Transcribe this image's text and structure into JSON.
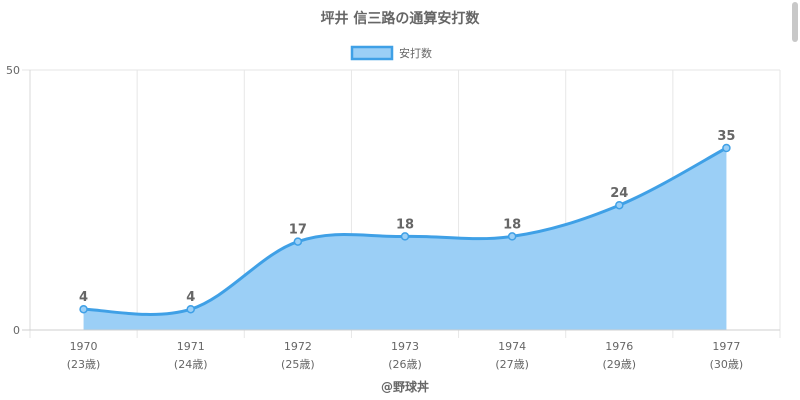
{
  "chart_data": {
    "type": "area",
    "title": "坪井 信三路の通算安打数",
    "legend": {
      "label": "安打数",
      "position": "top"
    },
    "categories": [
      "1970",
      "1971",
      "1972",
      "1973",
      "1974",
      "1976",
      "1977"
    ],
    "sublabels": [
      "(23歳)",
      "(24歳)",
      "(25歳)",
      "(26歳)",
      "(27歳)",
      "(29歳)",
      "(30歳)"
    ],
    "series": [
      {
        "name": "安打数",
        "values": [
          4,
          4,
          17,
          18,
          18,
          24,
          35
        ]
      }
    ],
    "ylim": [
      0,
      50
    ],
    "yticks": [
      "0",
      "50"
    ],
    "grid": true,
    "colors": {
      "line": "#3fa0e6",
      "fill": "#9bcff6",
      "grid": "#e6e6e6",
      "text": "#666666"
    }
  },
  "credit": "@野球丼"
}
